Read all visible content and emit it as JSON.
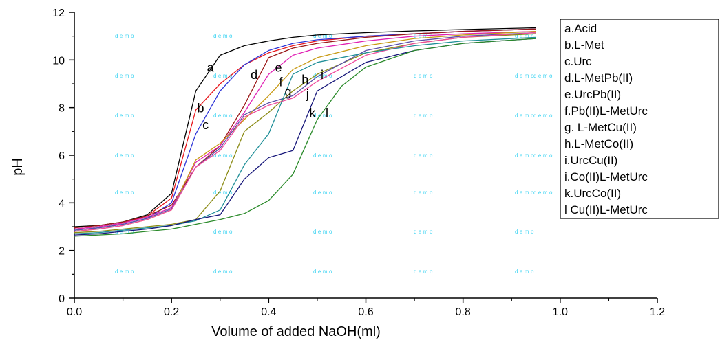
{
  "chart_data": {
    "type": "line",
    "xlabel": "Volume of added NaOH(ml)",
    "ylabel": "pH",
    "xlim": [
      0.0,
      1.2
    ],
    "ylim": [
      0,
      12
    ],
    "x_ticks": [
      "0.0",
      "0.2",
      "0.4",
      "0.6",
      "0.8",
      "1.0",
      "1.2"
    ],
    "y_ticks": [
      "0",
      "2",
      "4",
      "6",
      "8",
      "10",
      "12"
    ],
    "grid": false,
    "legend_position": "top-right",
    "watermark": "demo",
    "series": [
      {
        "name": "a.Acid",
        "label": "a",
        "color": "#000000",
        "x": [
          0.0,
          0.05,
          0.1,
          0.15,
          0.2,
          0.25,
          0.3,
          0.35,
          0.4,
          0.45,
          0.5,
          0.6,
          0.7,
          0.8,
          0.95
        ],
        "y": [
          3.0,
          3.05,
          3.2,
          3.5,
          4.4,
          8.7,
          10.2,
          10.6,
          10.8,
          10.95,
          11.05,
          11.15,
          11.22,
          11.28,
          11.35
        ]
      },
      {
        "name": "b.L-Met",
        "label": "b",
        "color": "#e8161b",
        "x": [
          0.0,
          0.05,
          0.1,
          0.15,
          0.2,
          0.25,
          0.3,
          0.35,
          0.4,
          0.45,
          0.5,
          0.6,
          0.7,
          0.8,
          0.95
        ],
        "y": [
          2.9,
          3.0,
          3.15,
          3.45,
          4.2,
          7.9,
          9.0,
          9.8,
          10.3,
          10.6,
          10.8,
          11.0,
          11.1,
          11.2,
          11.3
        ]
      },
      {
        "name": "c.Urc",
        "label": "c",
        "color": "#2d35d8",
        "x": [
          0.0,
          0.05,
          0.1,
          0.15,
          0.2,
          0.25,
          0.3,
          0.35,
          0.4,
          0.45,
          0.5,
          0.6,
          0.7,
          0.8,
          0.95
        ],
        "y": [
          2.85,
          2.95,
          3.1,
          3.35,
          4.0,
          6.9,
          8.7,
          9.8,
          10.4,
          10.7,
          10.85,
          11.0,
          11.1,
          11.2,
          11.3
        ]
      },
      {
        "name": "d.L-MetPb(II)",
        "label": "d",
        "color": "#9a1818",
        "x": [
          0.0,
          0.05,
          0.1,
          0.15,
          0.2,
          0.25,
          0.3,
          0.35,
          0.4,
          0.45,
          0.5,
          0.6,
          0.7,
          0.8,
          0.95
        ],
        "y": [
          2.95,
          3.05,
          3.2,
          3.45,
          3.9,
          5.5,
          6.4,
          8.1,
          10.1,
          10.5,
          10.7,
          10.95,
          11.1,
          11.2,
          11.3
        ]
      },
      {
        "name": "e.UrcPb(II)",
        "label": "e",
        "color": "#e020b4",
        "x": [
          0.0,
          0.05,
          0.1,
          0.15,
          0.2,
          0.25,
          0.3,
          0.35,
          0.4,
          0.45,
          0.5,
          0.6,
          0.7,
          0.8,
          0.95
        ],
        "y": [
          2.9,
          3.0,
          3.15,
          3.4,
          3.8,
          5.7,
          6.4,
          7.8,
          9.4,
          10.2,
          10.5,
          10.8,
          11.0,
          11.1,
          11.2
        ]
      },
      {
        "name": "f.Pb(II)L-MetUrc",
        "label": "f",
        "color": "#c89a14",
        "x": [
          0.0,
          0.05,
          0.1,
          0.15,
          0.2,
          0.25,
          0.3,
          0.35,
          0.4,
          0.45,
          0.5,
          0.6,
          0.7,
          0.8,
          0.95
        ],
        "y": [
          2.8,
          2.9,
          3.05,
          3.3,
          3.7,
          5.8,
          6.5,
          7.5,
          8.5,
          9.6,
          10.1,
          10.6,
          10.9,
          11.05,
          11.2
        ]
      },
      {
        "name": "g. L-MetCu(II)",
        "label": "g",
        "color": "#8b8b14",
        "x": [
          0.0,
          0.05,
          0.1,
          0.15,
          0.2,
          0.25,
          0.3,
          0.35,
          0.4,
          0.45,
          0.5,
          0.6,
          0.7,
          0.8,
          0.95
        ],
        "y": [
          2.75,
          2.8,
          2.9,
          3.0,
          3.1,
          3.3,
          4.5,
          7.0,
          7.8,
          8.7,
          9.4,
          10.3,
          10.7,
          10.95,
          11.1
        ]
      },
      {
        "name": "h.L-MetCo(II)",
        "label": "h",
        "color": "#5b4fa8",
        "x": [
          0.0,
          0.05,
          0.1,
          0.15,
          0.2,
          0.25,
          0.3,
          0.35,
          0.4,
          0.45,
          0.5,
          0.6,
          0.7,
          0.8,
          0.95
        ],
        "y": [
          2.85,
          2.95,
          3.1,
          3.35,
          3.75,
          5.5,
          6.3,
          7.7,
          8.2,
          8.5,
          9.3,
          10.4,
          10.8,
          11.0,
          11.15
        ]
      },
      {
        "name": "i.UrcCu(II)",
        "label": "i",
        "color": "#f04a9c",
        "x": [
          0.0,
          0.05,
          0.1,
          0.15,
          0.2,
          0.25,
          0.3,
          0.35,
          0.4,
          0.45,
          0.5,
          0.6,
          0.7,
          0.8,
          0.95
        ],
        "y": [
          2.8,
          2.9,
          3.05,
          3.3,
          3.7,
          5.5,
          6.2,
          7.6,
          8.1,
          8.4,
          9.1,
          10.2,
          10.7,
          10.95,
          11.15
        ]
      },
      {
        "name": "i.Co(II)L-MetUrc",
        "label": "j",
        "color": "#1f8f98",
        "x": [
          0.0,
          0.05,
          0.1,
          0.15,
          0.2,
          0.25,
          0.3,
          0.35,
          0.4,
          0.45,
          0.5,
          0.6,
          0.7,
          0.8,
          0.95
        ],
        "y": [
          2.7,
          2.75,
          2.85,
          2.95,
          3.05,
          3.25,
          3.7,
          5.6,
          6.9,
          9.4,
          9.9,
          10.3,
          10.6,
          10.8,
          10.95
        ]
      },
      {
        "name": "k.UrcCo(II)",
        "label": "k",
        "color": "#17177a",
        "x": [
          0.0,
          0.05,
          0.1,
          0.15,
          0.2,
          0.25,
          0.3,
          0.35,
          0.4,
          0.45,
          0.5,
          0.6,
          0.7,
          0.8,
          0.95
        ],
        "y": [
          2.65,
          2.7,
          2.8,
          2.9,
          3.05,
          3.3,
          3.5,
          5.0,
          5.9,
          6.2,
          8.7,
          9.9,
          10.4,
          10.7,
          10.9
        ]
      },
      {
        "name": "l Cu(II)L-MetUrc",
        "label": "l",
        "color": "#2a8a2a",
        "x": [
          0.0,
          0.05,
          0.1,
          0.15,
          0.2,
          0.25,
          0.3,
          0.35,
          0.4,
          0.45,
          0.5,
          0.55,
          0.6,
          0.7,
          0.8,
          0.95
        ],
        "y": [
          2.6,
          2.65,
          2.7,
          2.8,
          2.9,
          3.1,
          3.3,
          3.55,
          4.1,
          5.2,
          7.5,
          8.9,
          9.7,
          10.4,
          10.7,
          10.9
        ]
      }
    ],
    "annotations": [
      {
        "text": "a",
        "x": 0.28,
        "y": 9.5
      },
      {
        "text": "b",
        "x": 0.26,
        "y": 7.8
      },
      {
        "text": "c",
        "x": 0.27,
        "y": 7.1
      },
      {
        "text": "d",
        "x": 0.37,
        "y": 9.2
      },
      {
        "text": "e",
        "x": 0.42,
        "y": 9.5
      },
      {
        "text": "f",
        "x": 0.425,
        "y": 8.9
      },
      {
        "text": "g",
        "x": 0.44,
        "y": 8.5
      },
      {
        "text": "h",
        "x": 0.475,
        "y": 9.0
      },
      {
        "text": "i",
        "x": 0.51,
        "y": 9.2
      },
      {
        "text": "j",
        "x": 0.48,
        "y": 8.4
      },
      {
        "text": "k",
        "x": 0.49,
        "y": 7.6
      },
      {
        "text": "l",
        "x": 0.52,
        "y": 7.6
      }
    ]
  }
}
